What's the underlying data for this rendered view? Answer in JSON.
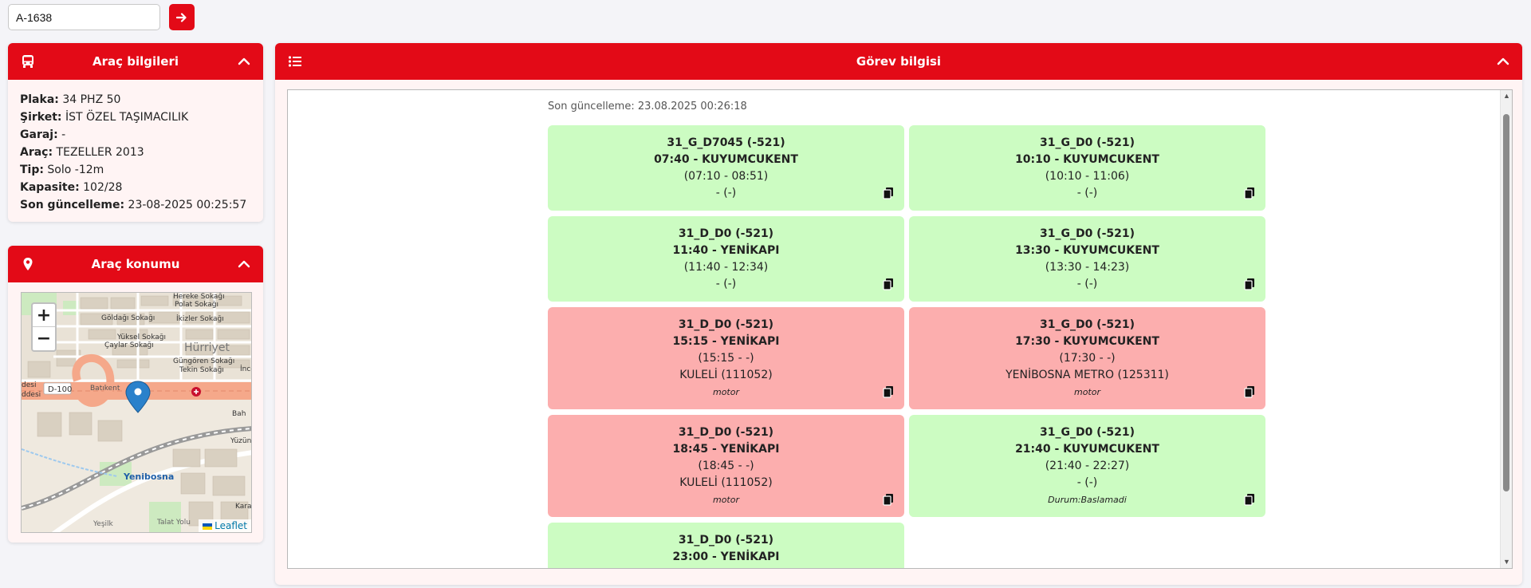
{
  "search": {
    "value": "A-1638"
  },
  "vehicle": {
    "title": "Araç bilgileri",
    "rows": [
      {
        "label": "Plaka:",
        "value": "34 PHZ 50"
      },
      {
        "label": "Şirket:",
        "value": "İST ÖZEL TAŞIMACILIK"
      },
      {
        "label": "Garaj:",
        "value": "-"
      },
      {
        "label": "Araç:",
        "value": "TEZELLER 2013"
      },
      {
        "label": "Tip:",
        "value": "Solo -12m"
      },
      {
        "label": "Kapasite:",
        "value": "102/28"
      },
      {
        "label": "Son güncelleme:",
        "value": "23-08-2025 00:25:57"
      }
    ]
  },
  "location": {
    "title": "Araç konumu",
    "zoom_in": "+",
    "zoom_out": "−",
    "attribution": "Leaflet",
    "map_labels": {
      "hereke": "Hereke Sokağı",
      "polat": "Polat Sokağı",
      "goldag": "Göldağı Sokağı",
      "ikizler": "İkizler Sokağı",
      "hurriyet": "Hürriyet",
      "yuksel": "Yüksel Sokağı",
      "caylar": "Çaylar Sokağı",
      "gungoren": "Güngören Sokağı",
      "tekin": "Tekin Sokağı",
      "d100": "D-100",
      "batikent": "Batıkent",
      "yenibosna": "Yenibosna",
      "yuzuncu": "Yüzüncü",
      "karan": "Karan",
      "desi1": "desi",
      "desi2": "ddesi",
      "ince": "İnce",
      "bah": "Bah",
      "yesilk": "Yeşilk",
      "talat": "Talat Yolu"
    }
  },
  "tasks": {
    "title": "Görev bilgisi",
    "updated": "Son güncelleme: 23.08.2025 00:26:18",
    "items": [
      {
        "status": "green",
        "code": "31_G_D7045 (-521)",
        "depart": "07:40 - KUYUMCUKENT",
        "window": "(07:10 - 08:51)",
        "vehicle": "- (-)",
        "note": ""
      },
      {
        "status": "green",
        "code": "31_G_D0 (-521)",
        "depart": "10:10 - KUYUMCUKENT",
        "window": "(10:10 - 11:06)",
        "vehicle": "- (-)",
        "note": ""
      },
      {
        "status": "green",
        "code": "31_D_D0 (-521)",
        "depart": "11:40 - YENİKAPI",
        "window": "(11:40 - 12:34)",
        "vehicle": "- (-)",
        "note": ""
      },
      {
        "status": "green",
        "code": "31_G_D0 (-521)",
        "depart": "13:30 - KUYUMCUKENT",
        "window": "(13:30 - 14:23)",
        "vehicle": "- (-)",
        "note": ""
      },
      {
        "status": "red",
        "code": "31_D_D0 (-521)",
        "depart": "15:15 - YENİKAPI",
        "window": "(15:15 - -)",
        "vehicle": "KULELİ (111052)",
        "note": "motor"
      },
      {
        "status": "red",
        "code": "31_G_D0 (-521)",
        "depart": "17:30 - KUYUMCUKENT",
        "window": "(17:30 - -)",
        "vehicle": "YENİBOSNA METRO (125311)",
        "note": "motor"
      },
      {
        "status": "red",
        "code": "31_D_D0 (-521)",
        "depart": "18:45 - YENİKAPI",
        "window": "(18:45 - -)",
        "vehicle": "KULELİ (111052)",
        "note": "motor"
      },
      {
        "status": "green",
        "code": "31_G_D0 (-521)",
        "depart": "21:40 - KUYUMCUKENT",
        "window": "(21:40 - 22:27)",
        "vehicle": "- (-)",
        "note": "Durum:Baslamadi"
      },
      {
        "status": "green",
        "code": "31_D_D0 (-521)",
        "depart": "23:00 - YENİKAPI",
        "window": "",
        "vehicle": "",
        "note": ""
      }
    ]
  },
  "colors": {
    "brand_red": "#e30a17",
    "task_green": "#ccfcc2",
    "task_red": "#fcaeae",
    "panel_bg": "#fff4f4"
  },
  "icons": {
    "go": "arrow-right-icon",
    "vehicle_header": "bus-icon",
    "location_header": "map-pin-icon",
    "tasks_header": "list-icon",
    "collapse": "chevron-up-icon",
    "copy": "copy-icon",
    "marker": "map-marker-icon"
  }
}
